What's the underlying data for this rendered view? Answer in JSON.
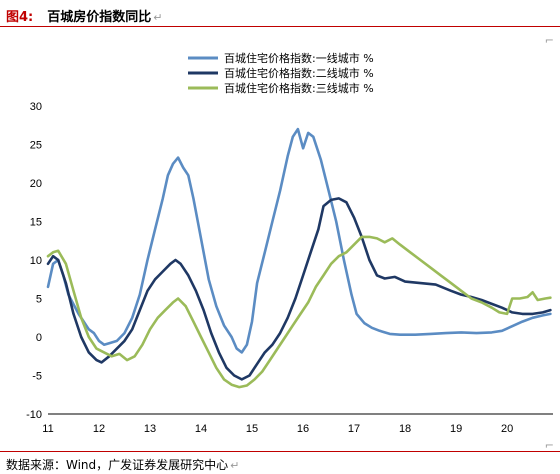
{
  "header": {
    "figure_label": "图4:",
    "title": "百城房价指数同比",
    "return_mark": "↵"
  },
  "footer": {
    "source": "数据来源：Wind，广发证券发展研究中心",
    "return_mark": "↵"
  },
  "colors": {
    "header_rule": "#c00000",
    "tier1": "#5b8cc3",
    "tier2": "#1f3864",
    "tier3": "#9bbb59"
  },
  "chart_data": {
    "type": "line",
    "title": "",
    "xlabel": "",
    "ylabel": "",
    "ylim": [
      -10,
      30
    ],
    "y_ticks": [
      -10,
      -5,
      0,
      5,
      10,
      15,
      20,
      25,
      30
    ],
    "x_ticks": [
      "11",
      "12",
      "13",
      "14",
      "15",
      "16",
      "17",
      "18",
      "19",
      "20"
    ],
    "xlim": [
      2011,
      2020.9
    ],
    "legend_position": "top-center",
    "grid": false,
    "series": [
      {
        "name": "百城住宅价格指数:一线城市 %",
        "color": "#5b8cc3",
        "points": [
          [
            2011.0,
            6.5
          ],
          [
            2011.1,
            9.5
          ],
          [
            2011.2,
            10.0
          ],
          [
            2011.3,
            8.0
          ],
          [
            2011.4,
            5.5
          ],
          [
            2011.6,
            3.0
          ],
          [
            2011.8,
            1.0
          ],
          [
            2011.9,
            0.5
          ],
          [
            2012.0,
            -0.5
          ],
          [
            2012.1,
            -1.0
          ],
          [
            2012.2,
            -0.8
          ],
          [
            2012.35,
            -0.5
          ],
          [
            2012.5,
            0.5
          ],
          [
            2012.65,
            2.5
          ],
          [
            2012.8,
            5.5
          ],
          [
            2012.95,
            10.0
          ],
          [
            2013.1,
            14.0
          ],
          [
            2013.25,
            18.0
          ],
          [
            2013.35,
            21.0
          ],
          [
            2013.45,
            22.5
          ],
          [
            2013.55,
            23.3
          ],
          [
            2013.65,
            22.0
          ],
          [
            2013.75,
            21.0
          ],
          [
            2013.85,
            18.0
          ],
          [
            2013.95,
            14.5
          ],
          [
            2014.05,
            11.0
          ],
          [
            2014.15,
            7.5
          ],
          [
            2014.3,
            4.0
          ],
          [
            2014.45,
            1.5
          ],
          [
            2014.6,
            0.0
          ],
          [
            2014.7,
            -1.5
          ],
          [
            2014.8,
            -2.0
          ],
          [
            2014.9,
            -1.0
          ],
          [
            2015.0,
            2.0
          ],
          [
            2015.1,
            7.0
          ],
          [
            2015.25,
            11.0
          ],
          [
            2015.4,
            15.0
          ],
          [
            2015.55,
            19.0
          ],
          [
            2015.7,
            23.5
          ],
          [
            2015.8,
            26.0
          ],
          [
            2015.9,
            27.0
          ],
          [
            2016.0,
            24.5
          ],
          [
            2016.1,
            26.5
          ],
          [
            2016.2,
            26.0
          ],
          [
            2016.35,
            23.0
          ],
          [
            2016.5,
            19.0
          ],
          [
            2016.65,
            15.0
          ],
          [
            2016.8,
            10.0
          ],
          [
            2016.95,
            5.5
          ],
          [
            2017.05,
            3.0
          ],
          [
            2017.2,
            1.8
          ],
          [
            2017.35,
            1.2
          ],
          [
            2017.5,
            0.8
          ],
          [
            2017.7,
            0.4
          ],
          [
            2017.9,
            0.3
          ],
          [
            2018.2,
            0.3
          ],
          [
            2018.5,
            0.4
          ],
          [
            2018.8,
            0.5
          ],
          [
            2019.1,
            0.6
          ],
          [
            2019.4,
            0.5
          ],
          [
            2019.7,
            0.6
          ],
          [
            2019.9,
            0.8
          ],
          [
            2020.1,
            1.4
          ],
          [
            2020.3,
            2.0
          ],
          [
            2020.5,
            2.5
          ],
          [
            2020.7,
            2.8
          ],
          [
            2020.85,
            3.0
          ]
        ]
      },
      {
        "name": "百城住宅价格指数:二线城市 %",
        "color": "#1f3864",
        "points": [
          [
            2011.0,
            9.5
          ],
          [
            2011.1,
            10.5
          ],
          [
            2011.2,
            10.0
          ],
          [
            2011.35,
            7.0
          ],
          [
            2011.5,
            3.0
          ],
          [
            2011.65,
            0.0
          ],
          [
            2011.8,
            -2.0
          ],
          [
            2011.95,
            -3.0
          ],
          [
            2012.05,
            -3.3
          ],
          [
            2012.2,
            -2.5
          ],
          [
            2012.35,
            -1.5
          ],
          [
            2012.5,
            -0.5
          ],
          [
            2012.65,
            1.0
          ],
          [
            2012.8,
            3.5
          ],
          [
            2012.95,
            6.0
          ],
          [
            2013.1,
            7.5
          ],
          [
            2013.25,
            8.5
          ],
          [
            2013.4,
            9.5
          ],
          [
            2013.5,
            10.0
          ],
          [
            2013.6,
            9.5
          ],
          [
            2013.75,
            8.0
          ],
          [
            2013.9,
            6.0
          ],
          [
            2014.05,
            3.5
          ],
          [
            2014.2,
            0.5
          ],
          [
            2014.35,
            -2.0
          ],
          [
            2014.5,
            -4.0
          ],
          [
            2014.65,
            -5.0
          ],
          [
            2014.8,
            -5.5
          ],
          [
            2014.95,
            -5.0
          ],
          [
            2015.1,
            -3.5
          ],
          [
            2015.25,
            -2.0
          ],
          [
            2015.4,
            -1.0
          ],
          [
            2015.55,
            0.5
          ],
          [
            2015.7,
            2.5
          ],
          [
            2015.85,
            5.0
          ],
          [
            2016.0,
            8.0
          ],
          [
            2016.15,
            11.0
          ],
          [
            2016.3,
            14.0
          ],
          [
            2016.4,
            17.0
          ],
          [
            2016.55,
            17.8
          ],
          [
            2016.7,
            18.0
          ],
          [
            2016.85,
            17.5
          ],
          [
            2017.0,
            15.5
          ],
          [
            2017.15,
            13.0
          ],
          [
            2017.3,
            10.0
          ],
          [
            2017.45,
            8.0
          ],
          [
            2017.6,
            7.6
          ],
          [
            2017.8,
            7.8
          ],
          [
            2018.0,
            7.2
          ],
          [
            2018.3,
            7.0
          ],
          [
            2018.6,
            6.8
          ],
          [
            2018.9,
            6.0
          ],
          [
            2019.1,
            5.5
          ],
          [
            2019.3,
            5.2
          ],
          [
            2019.5,
            4.8
          ],
          [
            2019.7,
            4.3
          ],
          [
            2019.9,
            3.8
          ],
          [
            2020.1,
            3.2
          ],
          [
            2020.3,
            3.0
          ],
          [
            2020.5,
            3.0
          ],
          [
            2020.7,
            3.2
          ],
          [
            2020.85,
            3.5
          ]
        ]
      },
      {
        "name": "百城住宅价格指数:三线城市 %",
        "color": "#9bbb59",
        "points": [
          [
            2011.0,
            10.5
          ],
          [
            2011.1,
            11.0
          ],
          [
            2011.2,
            11.2
          ],
          [
            2011.35,
            9.5
          ],
          [
            2011.5,
            6.0
          ],
          [
            2011.65,
            2.5
          ],
          [
            2011.8,
            0.0
          ],
          [
            2011.95,
            -1.5
          ],
          [
            2012.1,
            -2.0
          ],
          [
            2012.25,
            -2.5
          ],
          [
            2012.4,
            -2.2
          ],
          [
            2012.55,
            -3.0
          ],
          [
            2012.7,
            -2.5
          ],
          [
            2012.85,
            -1.0
          ],
          [
            2013.0,
            1.0
          ],
          [
            2013.15,
            2.5
          ],
          [
            2013.3,
            3.5
          ],
          [
            2013.45,
            4.5
          ],
          [
            2013.55,
            5.0
          ],
          [
            2013.7,
            4.0
          ],
          [
            2013.85,
            2.0
          ],
          [
            2014.0,
            0.0
          ],
          [
            2014.15,
            -2.0
          ],
          [
            2014.3,
            -4.0
          ],
          [
            2014.45,
            -5.5
          ],
          [
            2014.6,
            -6.2
          ],
          [
            2014.75,
            -6.5
          ],
          [
            2014.9,
            -6.3
          ],
          [
            2015.05,
            -5.5
          ],
          [
            2015.2,
            -4.5
          ],
          [
            2015.35,
            -3.0
          ],
          [
            2015.5,
            -1.5
          ],
          [
            2015.65,
            0.0
          ],
          [
            2015.8,
            1.5
          ],
          [
            2015.95,
            3.0
          ],
          [
            2016.1,
            4.5
          ],
          [
            2016.25,
            6.5
          ],
          [
            2016.4,
            8.0
          ],
          [
            2016.55,
            9.5
          ],
          [
            2016.7,
            10.5
          ],
          [
            2016.85,
            11.0
          ],
          [
            2017.0,
            12.0
          ],
          [
            2017.15,
            13.0
          ],
          [
            2017.3,
            13.0
          ],
          [
            2017.45,
            12.8
          ],
          [
            2017.6,
            12.3
          ],
          [
            2017.75,
            12.8
          ],
          [
            2017.9,
            12.0
          ],
          [
            2018.1,
            11.0
          ],
          [
            2018.3,
            10.0
          ],
          [
            2018.5,
            9.0
          ],
          [
            2018.7,
            8.0
          ],
          [
            2018.9,
            7.0
          ],
          [
            2019.1,
            6.0
          ],
          [
            2019.3,
            5.0
          ],
          [
            2019.5,
            4.5
          ],
          [
            2019.7,
            3.8
          ],
          [
            2019.85,
            3.2
          ],
          [
            2020.0,
            3.0
          ],
          [
            2020.1,
            5.0
          ],
          [
            2020.25,
            5.0
          ],
          [
            2020.4,
            5.2
          ],
          [
            2020.5,
            5.8
          ],
          [
            2020.6,
            4.8
          ],
          [
            2020.75,
            5.0
          ],
          [
            2020.85,
            5.1
          ]
        ]
      }
    ]
  }
}
